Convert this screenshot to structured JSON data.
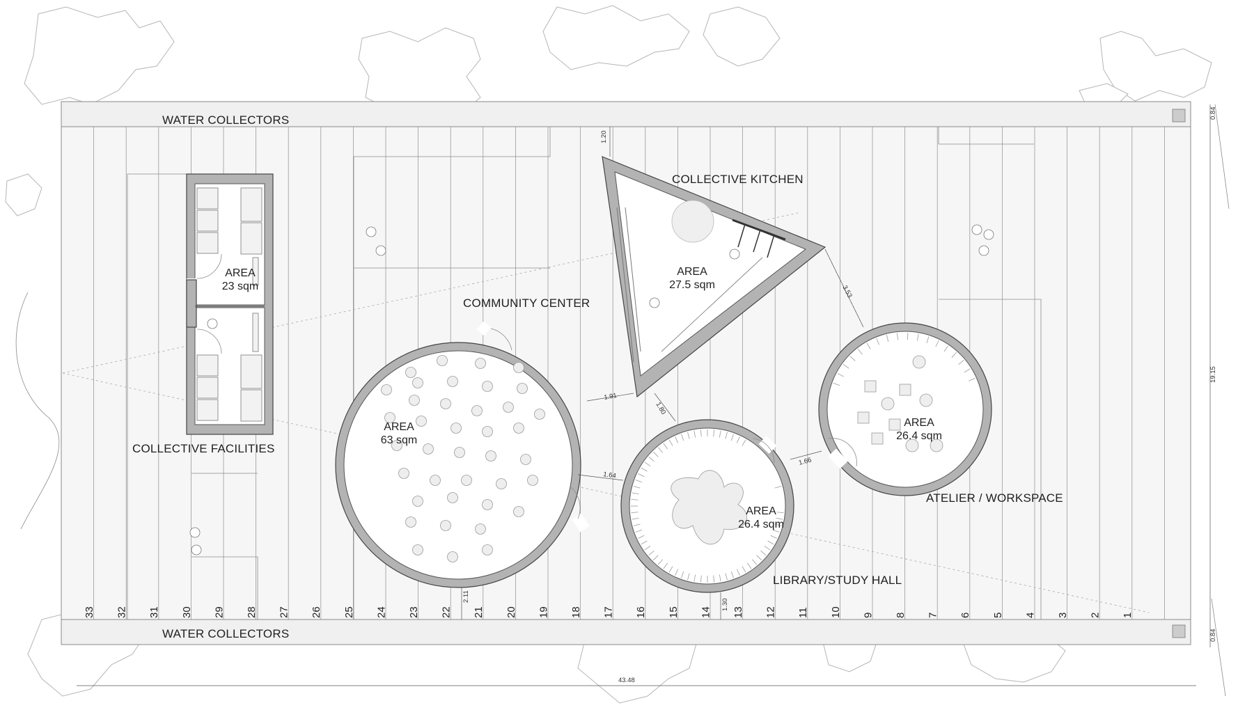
{
  "labels": {
    "water_collectors_top": "WATER COLLECTORS",
    "water_collectors_bottom": "WATER COLLECTORS",
    "collective_facilities": "COLLECTIVE FACILITIES",
    "community_center": "COMMUNITY CENTER",
    "collective_kitchen": "COLLECTIVE KITCHEN",
    "library": "LIBRARY/STUDY HALL",
    "atelier": "ATELIER / WORKSPACE"
  },
  "areas": {
    "facilities": {
      "title": "AREA",
      "value": "23 sqm"
    },
    "community": {
      "title": "AREA",
      "value": "63 sqm"
    },
    "kitchen": {
      "title": "AREA",
      "value": "27.5 sqm"
    },
    "library": {
      "title": "AREA",
      "value": "26.4 sqm"
    },
    "atelier": {
      "title": "AREA",
      "value": "26.4 sqm"
    }
  },
  "dimensions": {
    "top_strip": "0.84",
    "bottom_strip": "0.84",
    "overall_depth": "19.15",
    "overall_length": "43.48",
    "kitchen_setback": "1.20",
    "kitchen_to_atelier": "3.53",
    "community_to_kitchen": "1.91",
    "kitchen_to_library": "1.80",
    "community_to_library": "1.64",
    "library_to_atelier": "1.66",
    "community_to_edge": "2.11",
    "library_to_edge": "1.30"
  },
  "bay_numbers": [
    "33",
    "32",
    "31",
    "30",
    "29",
    "28",
    "27",
    "26",
    "25",
    "24",
    "23",
    "22",
    "21",
    "20",
    "19",
    "18",
    "17",
    "16",
    "15",
    "14",
    "13",
    "12",
    "11",
    "10",
    "9",
    "8",
    "7",
    "6",
    "5",
    "4",
    "3",
    "2",
    "1"
  ],
  "colors": {
    "wall": "#b3b3b3",
    "deck": "#f4f4f4",
    "line": "#8a8a8a",
    "text": "#1f1f1f"
  }
}
